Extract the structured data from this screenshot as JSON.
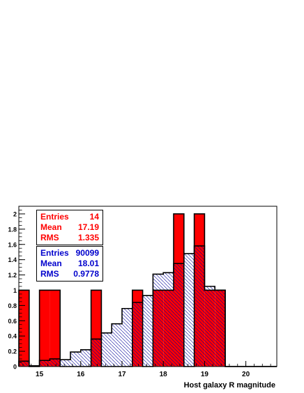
{
  "chart_data": {
    "type": "bar",
    "xlabel": "Host galaxy R magnitude",
    "ylabel": "",
    "xlim": [
      14.5,
      20.75
    ],
    "ylim": [
      0,
      2.1
    ],
    "bin_width": 0.25,
    "bin_edges_start": 14.5,
    "x_tick_labels": [
      "15",
      "16",
      "17",
      "18",
      "19",
      "20"
    ],
    "y_tick_labels": [
      "0",
      "0.2",
      "0.4",
      "0.6",
      "0.8",
      "1",
      "1.2",
      "1.4",
      "1.6",
      "1.8",
      "2"
    ],
    "series": [
      {
        "name": "",
        "color": "#ff0000",
        "fill": "solid",
        "values": [
          1,
          0,
          1,
          1,
          0,
          0,
          0,
          1,
          0,
          0,
          0,
          1,
          0,
          1,
          1,
          2,
          0,
          2,
          1,
          1,
          0,
          0,
          0,
          0,
          0
        ]
      },
      {
        "name": "",
        "color": "#000099",
        "fill": "hatched",
        "values": [
          0.07,
          0.01,
          0.08,
          0.1,
          0.09,
          0.19,
          0.22,
          0.36,
          0.44,
          0.56,
          0.76,
          0.84,
          0.93,
          1.21,
          1.23,
          1.35,
          1.48,
          1.58,
          1.05,
          1.0,
          0,
          0,
          0,
          0,
          0
        ]
      }
    ],
    "stats": [
      {
        "color": "#ff0000",
        "rows": [
          {
            "label": "Entries",
            "value": "14"
          },
          {
            "label": "Mean",
            "value": "17.19"
          },
          {
            "label": "RMS",
            "value": "1.335"
          }
        ]
      },
      {
        "color": "#0000cc",
        "rows": [
          {
            "label": "Entries",
            "value": "90099"
          },
          {
            "label": "Mean",
            "value": "18.01"
          },
          {
            "label": "RMS",
            "value": "0.9778"
          }
        ]
      }
    ]
  }
}
